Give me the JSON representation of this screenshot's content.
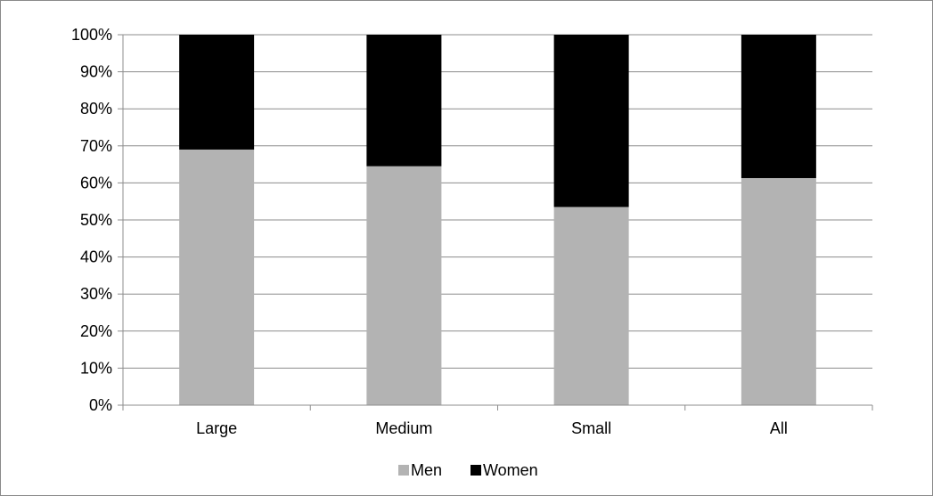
{
  "chart_data": {
    "type": "bar",
    "stacked": true,
    "percent": true,
    "categories": [
      "Large",
      "Medium",
      "Small",
      "All"
    ],
    "series": [
      {
        "name": "Men",
        "values": [
          69,
          64.5,
          53.5,
          61.3
        ],
        "color": "#b3b3b3"
      },
      {
        "name": "Women",
        "values": [
          31,
          35.5,
          46.5,
          38.7
        ],
        "color": "#000000"
      }
    ],
    "y_ticks": [
      "0%",
      "10%",
      "20%",
      "30%",
      "40%",
      "50%",
      "60%",
      "70%",
      "80%",
      "90%",
      "100%"
    ],
    "ylim": [
      0,
      100
    ],
    "grid": true,
    "legend_position": "bottom",
    "title": "",
    "xlabel": "",
    "ylabel": ""
  }
}
